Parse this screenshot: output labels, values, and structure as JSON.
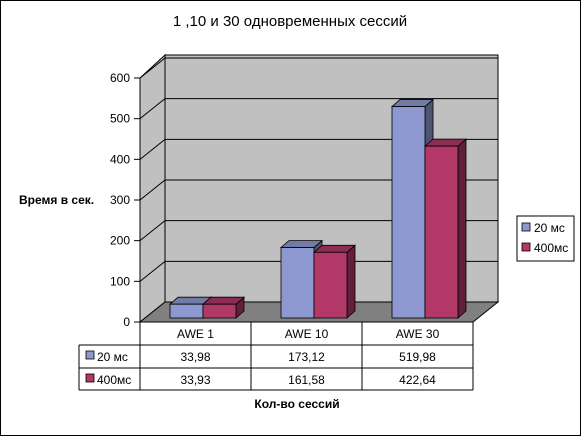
{
  "chart_data": {
    "type": "bar",
    "title": "1 ,10 и 30 одновременных сессий",
    "ylabel": "Время в сек.",
    "xlabel": "Кол-во сессий",
    "ylim": [
      0,
      600
    ],
    "yticks": [
      "0",
      "100",
      "200",
      "300",
      "400",
      "500",
      "600"
    ],
    "categories": [
      "AWE 1",
      "AWE 10",
      "AWE 30"
    ],
    "series": [
      {
        "name": "20 мс",
        "color": "#8e98d0",
        "values": [
          33.98,
          173.12,
          519.98
        ],
        "labels": [
          "33,98",
          "173,12",
          "519,98"
        ]
      },
      {
        "name": "400мс",
        "color": "#b23868",
        "values": [
          33.93,
          161.58,
          422.64
        ],
        "labels": [
          "33,93",
          "161,58",
          "422,64"
        ]
      }
    ],
    "legend": "right",
    "grid": true,
    "data_table": true
  }
}
